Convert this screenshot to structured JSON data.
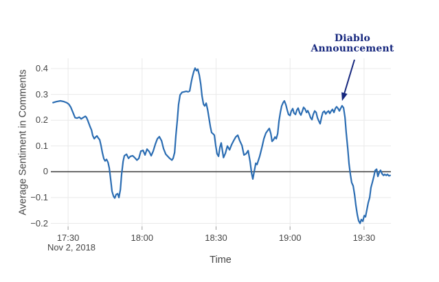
{
  "chart": {
    "y_axis_title": "Average Sentiment in Comments",
    "x_axis_title": "Time",
    "date_label": "Nov 2, 2018",
    "annotation": {
      "line1": "Diablo",
      "line2": "Announcement"
    }
  },
  "chart_data": {
    "type": "line",
    "title": "",
    "xlabel": "Time",
    "ylabel": "Average Sentiment in Comments",
    "x_unit": "minutes after 17:00 on Nov 2, 2018",
    "xlim": [
      23,
      160.9
    ],
    "ylim": [
      -0.212,
      0.44
    ],
    "grid": true,
    "legend": "none",
    "x_ticks": [
      {
        "t": 30,
        "label": "17:30"
      },
      {
        "t": 60,
        "label": "18:00"
      },
      {
        "t": 90,
        "label": "18:30"
      },
      {
        "t": 120,
        "label": "19:00"
      },
      {
        "t": 150,
        "label": "19:30"
      }
    ],
    "y_ticks": [
      {
        "v": 0.4,
        "label": "0.4"
      },
      {
        "v": 0.3,
        "label": "0.3"
      },
      {
        "v": 0.2,
        "label": "0.2"
      },
      {
        "v": 0.1,
        "label": "0.1"
      },
      {
        "v": 0,
        "label": "0"
      },
      {
        "v": -0.1,
        "label": "−0.1"
      },
      {
        "v": -0.2,
        "label": "−0.2"
      }
    ],
    "line_color": "#2a6cb2",
    "grid_color": "#e9e9e9",
    "zero_line_color": "#4a4a4a",
    "tick_mark_color": "#999999",
    "label_color": "#444444",
    "annotation": {
      "text": [
        "Diablo",
        "Announcement"
      ],
      "color": "#16277e",
      "target": {
        "t": 141.1,
        "v": 0.256,
        "time": "19:21"
      }
    },
    "series": [
      {
        "name": "Average Sentiment in Comments",
        "points": [
          [
            23.9,
            0.268
          ],
          [
            25.3,
            0.272
          ],
          [
            26.9,
            0.275
          ],
          [
            28.3,
            0.272
          ],
          [
            29.4,
            0.268
          ],
          [
            30.3,
            0.262
          ],
          [
            31.1,
            0.25
          ],
          [
            31.9,
            0.232
          ],
          [
            32.8,
            0.21
          ],
          [
            33.6,
            0.208
          ],
          [
            34.5,
            0.212
          ],
          [
            35.3,
            0.205
          ],
          [
            36.1,
            0.21
          ],
          [
            37,
            0.215
          ],
          [
            37.5,
            0.21
          ],
          [
            38.1,
            0.196
          ],
          [
            38.9,
            0.175
          ],
          [
            39.5,
            0.162
          ],
          [
            40,
            0.14
          ],
          [
            40.6,
            0.128
          ],
          [
            41.1,
            0.134
          ],
          [
            41.7,
            0.139
          ],
          [
            42.3,
            0.13
          ],
          [
            42.8,
            0.124
          ],
          [
            43.4,
            0.1
          ],
          [
            43.9,
            0.074
          ],
          [
            44.5,
            0.05
          ],
          [
            45,
            0.042
          ],
          [
            45.6,
            0.048
          ],
          [
            46.2,
            0.036
          ],
          [
            46.7,
            0.014
          ],
          [
            47.3,
            -0.032
          ],
          [
            47.8,
            -0.075
          ],
          [
            48.4,
            -0.095
          ],
          [
            48.9,
            -0.102
          ],
          [
            49.5,
            -0.088
          ],
          [
            50.1,
            -0.085
          ],
          [
            50.6,
            -0.1
          ],
          [
            51.2,
            -0.07
          ],
          [
            51.7,
            -0.01
          ],
          [
            52.3,
            0.04
          ],
          [
            52.8,
            0.062
          ],
          [
            53.7,
            0.068
          ],
          [
            54.5,
            0.052
          ],
          [
            55.3,
            0.06
          ],
          [
            56.2,
            0.062
          ],
          [
            57,
            0.055
          ],
          [
            57.9,
            0.045
          ],
          [
            58.7,
            0.052
          ],
          [
            59.5,
            0.08
          ],
          [
            60.4,
            0.083
          ],
          [
            61.2,
            0.065
          ],
          [
            62,
            0.088
          ],
          [
            62.9,
            0.078
          ],
          [
            63.7,
            0.062
          ],
          [
            64.5,
            0.08
          ],
          [
            65.4,
            0.108
          ],
          [
            66.2,
            0.128
          ],
          [
            67,
            0.136
          ],
          [
            67.9,
            0.12
          ],
          [
            68.7,
            0.09
          ],
          [
            69.6,
            0.068
          ],
          [
            70.4,
            0.06
          ],
          [
            71.2,
            0.052
          ],
          [
            72.1,
            0.045
          ],
          [
            72.6,
            0.052
          ],
          [
            73.2,
            0.075
          ],
          [
            73.7,
            0.14
          ],
          [
            74.3,
            0.2
          ],
          [
            74.8,
            0.26
          ],
          [
            75.4,
            0.298
          ],
          [
            76.2,
            0.308
          ],
          [
            77.1,
            0.31
          ],
          [
            77.9,
            0.312
          ],
          [
            78.7,
            0.31
          ],
          [
            79.3,
            0.313
          ],
          [
            79.9,
            0.345
          ],
          [
            80.4,
            0.368
          ],
          [
            81,
            0.39
          ],
          [
            81.5,
            0.402
          ],
          [
            82.1,
            0.392
          ],
          [
            82.6,
            0.398
          ],
          [
            83.2,
            0.375
          ],
          [
            83.8,
            0.34
          ],
          [
            84.3,
            0.295
          ],
          [
            84.9,
            0.262
          ],
          [
            85.4,
            0.255
          ],
          [
            86,
            0.266
          ],
          [
            86.6,
            0.24
          ],
          [
            87.1,
            0.21
          ],
          [
            87.7,
            0.175
          ],
          [
            88.2,
            0.152
          ],
          [
            88.8,
            0.147
          ],
          [
            89.3,
            0.142
          ],
          [
            89.9,
            0.1
          ],
          [
            90.4,
            0.07
          ],
          [
            91,
            0.06
          ],
          [
            91.6,
            0.096
          ],
          [
            92.1,
            0.112
          ],
          [
            93,
            0.055
          ],
          [
            93.8,
            0.072
          ],
          [
            94.6,
            0.1
          ],
          [
            95.5,
            0.085
          ],
          [
            96.3,
            0.105
          ],
          [
            97.1,
            0.12
          ],
          [
            98,
            0.135
          ],
          [
            98.8,
            0.142
          ],
          [
            99.6,
            0.12
          ],
          [
            100.5,
            0.102
          ],
          [
            101.3,
            0.065
          ],
          [
            102.2,
            0.07
          ],
          [
            103,
            0.082
          ],
          [
            103.8,
            0.04
          ],
          [
            104.4,
            -0.005
          ],
          [
            104.9,
            -0.028
          ],
          [
            105.5,
            0.002
          ],
          [
            106.1,
            0.033
          ],
          [
            106.6,
            0.028
          ],
          [
            107.2,
            0.045
          ],
          [
            107.7,
            0.06
          ],
          [
            108.6,
            0.095
          ],
          [
            109.4,
            0.128
          ],
          [
            110.2,
            0.15
          ],
          [
            111.1,
            0.162
          ],
          [
            111.6,
            0.168
          ],
          [
            112.2,
            0.148
          ],
          [
            112.7,
            0.118
          ],
          [
            113.3,
            0.124
          ],
          [
            113.9,
            0.135
          ],
          [
            114.4,
            0.128
          ],
          [
            115,
            0.148
          ],
          [
            115.5,
            0.195
          ],
          [
            116.1,
            0.232
          ],
          [
            116.6,
            0.255
          ],
          [
            117.2,
            0.268
          ],
          [
            117.7,
            0.275
          ],
          [
            118.3,
            0.26
          ],
          [
            118.9,
            0.238
          ],
          [
            119.4,
            0.222
          ],
          [
            120,
            0.218
          ],
          [
            120.5,
            0.235
          ],
          [
            121.1,
            0.245
          ],
          [
            121.6,
            0.228
          ],
          [
            122.2,
            0.222
          ],
          [
            122.8,
            0.24
          ],
          [
            123.3,
            0.247
          ],
          [
            123.9,
            0.228
          ],
          [
            124.4,
            0.22
          ],
          [
            125,
            0.235
          ],
          [
            125.5,
            0.25
          ],
          [
            126.1,
            0.243
          ],
          [
            126.7,
            0.23
          ],
          [
            127.2,
            0.237
          ],
          [
            127.8,
            0.224
          ],
          [
            128.3,
            0.21
          ],
          [
            128.9,
            0.202
          ],
          [
            129.4,
            0.222
          ],
          [
            130,
            0.236
          ],
          [
            130.6,
            0.23
          ],
          [
            131.1,
            0.21
          ],
          [
            131.7,
            0.196
          ],
          [
            132.2,
            0.186
          ],
          [
            132.8,
            0.212
          ],
          [
            133.3,
            0.23
          ],
          [
            133.9,
            0.235
          ],
          [
            134.5,
            0.224
          ],
          [
            135,
            0.231
          ],
          [
            135.6,
            0.236
          ],
          [
            136.1,
            0.226
          ],
          [
            136.7,
            0.236
          ],
          [
            137.2,
            0.242
          ],
          [
            137.8,
            0.23
          ],
          [
            138.4,
            0.246
          ],
          [
            138.9,
            0.252
          ],
          [
            139.5,
            0.245
          ],
          [
            140,
            0.236
          ],
          [
            140.6,
            0.247
          ],
          [
            141.1,
            0.256
          ],
          [
            141.7,
            0.248
          ],
          [
            142.3,
            0.21
          ],
          [
            142.8,
            0.15
          ],
          [
            143.4,
            0.09
          ],
          [
            143.9,
            0.032
          ],
          [
            144.5,
            -0.012
          ],
          [
            145,
            -0.042
          ],
          [
            145.6,
            -0.055
          ],
          [
            146.2,
            -0.09
          ],
          [
            146.7,
            -0.13
          ],
          [
            147.3,
            -0.168
          ],
          [
            147.8,
            -0.19
          ],
          [
            148.4,
            -0.2
          ],
          [
            148.9,
            -0.185
          ],
          [
            149.5,
            -0.192
          ],
          [
            150.1,
            -0.17
          ],
          [
            150.6,
            -0.175
          ],
          [
            151.2,
            -0.145
          ],
          [
            151.7,
            -0.12
          ],
          [
            152.3,
            -0.1
          ],
          [
            152.8,
            -0.062
          ],
          [
            153.4,
            -0.04
          ],
          [
            154,
            -0.018
          ],
          [
            154.5,
            0.005
          ],
          [
            155.1,
            0.01
          ],
          [
            155.6,
            -0.018
          ],
          [
            156.2,
            -0.002
          ],
          [
            156.7,
            0.006
          ],
          [
            157.3,
            -0.008
          ],
          [
            157.9,
            -0.014
          ],
          [
            158.4,
            -0.01
          ],
          [
            159,
            -0.014
          ],
          [
            159.5,
            -0.01
          ],
          [
            160.1,
            -0.016
          ],
          [
            160.6,
            -0.014
          ]
        ]
      }
    ]
  }
}
